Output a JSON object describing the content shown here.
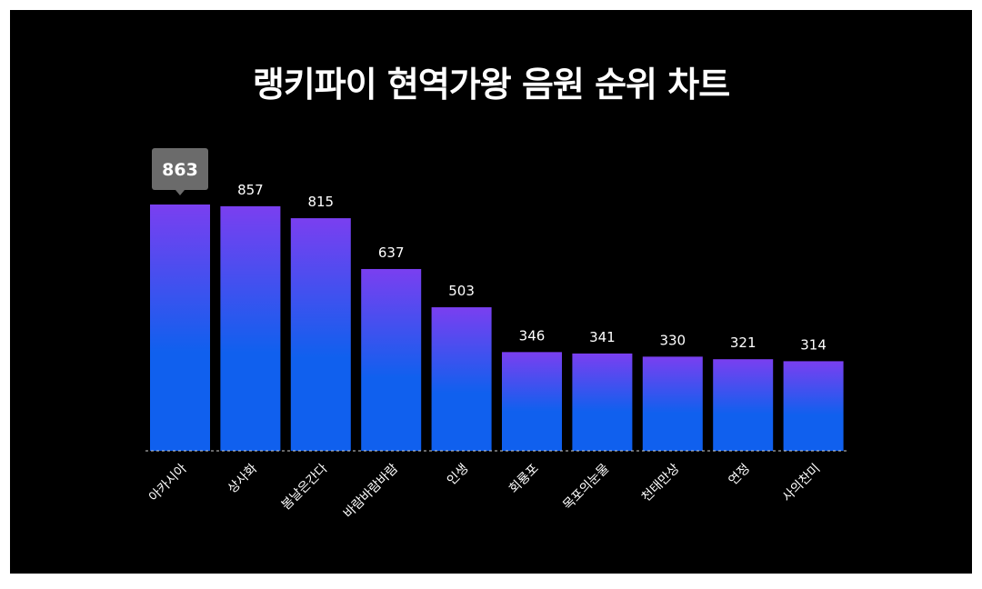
{
  "chart_data": {
    "type": "bar",
    "title": "랭키파이 현역가왕 음원 순위 차트",
    "categories": [
      "아카시아",
      "상사화",
      "봄날은간다",
      "바람바람바람",
      "인생",
      "회룡포",
      "목포의눈물",
      "천태만상",
      "연정",
      "사의찬미"
    ],
    "values": [
      863,
      857,
      815,
      637,
      503,
      346,
      341,
      330,
      321,
      314
    ],
    "ylim": [
      0,
      863
    ],
    "xlabel": "",
    "ylabel": "",
    "grid": false,
    "highlighted_index": 0,
    "colors": {
      "bar_top": "#7a3ff0",
      "bar_bottom": "#1060ee",
      "background": "#000000",
      "text": "#ffffff",
      "tooltip": "#6b6b6b"
    }
  }
}
